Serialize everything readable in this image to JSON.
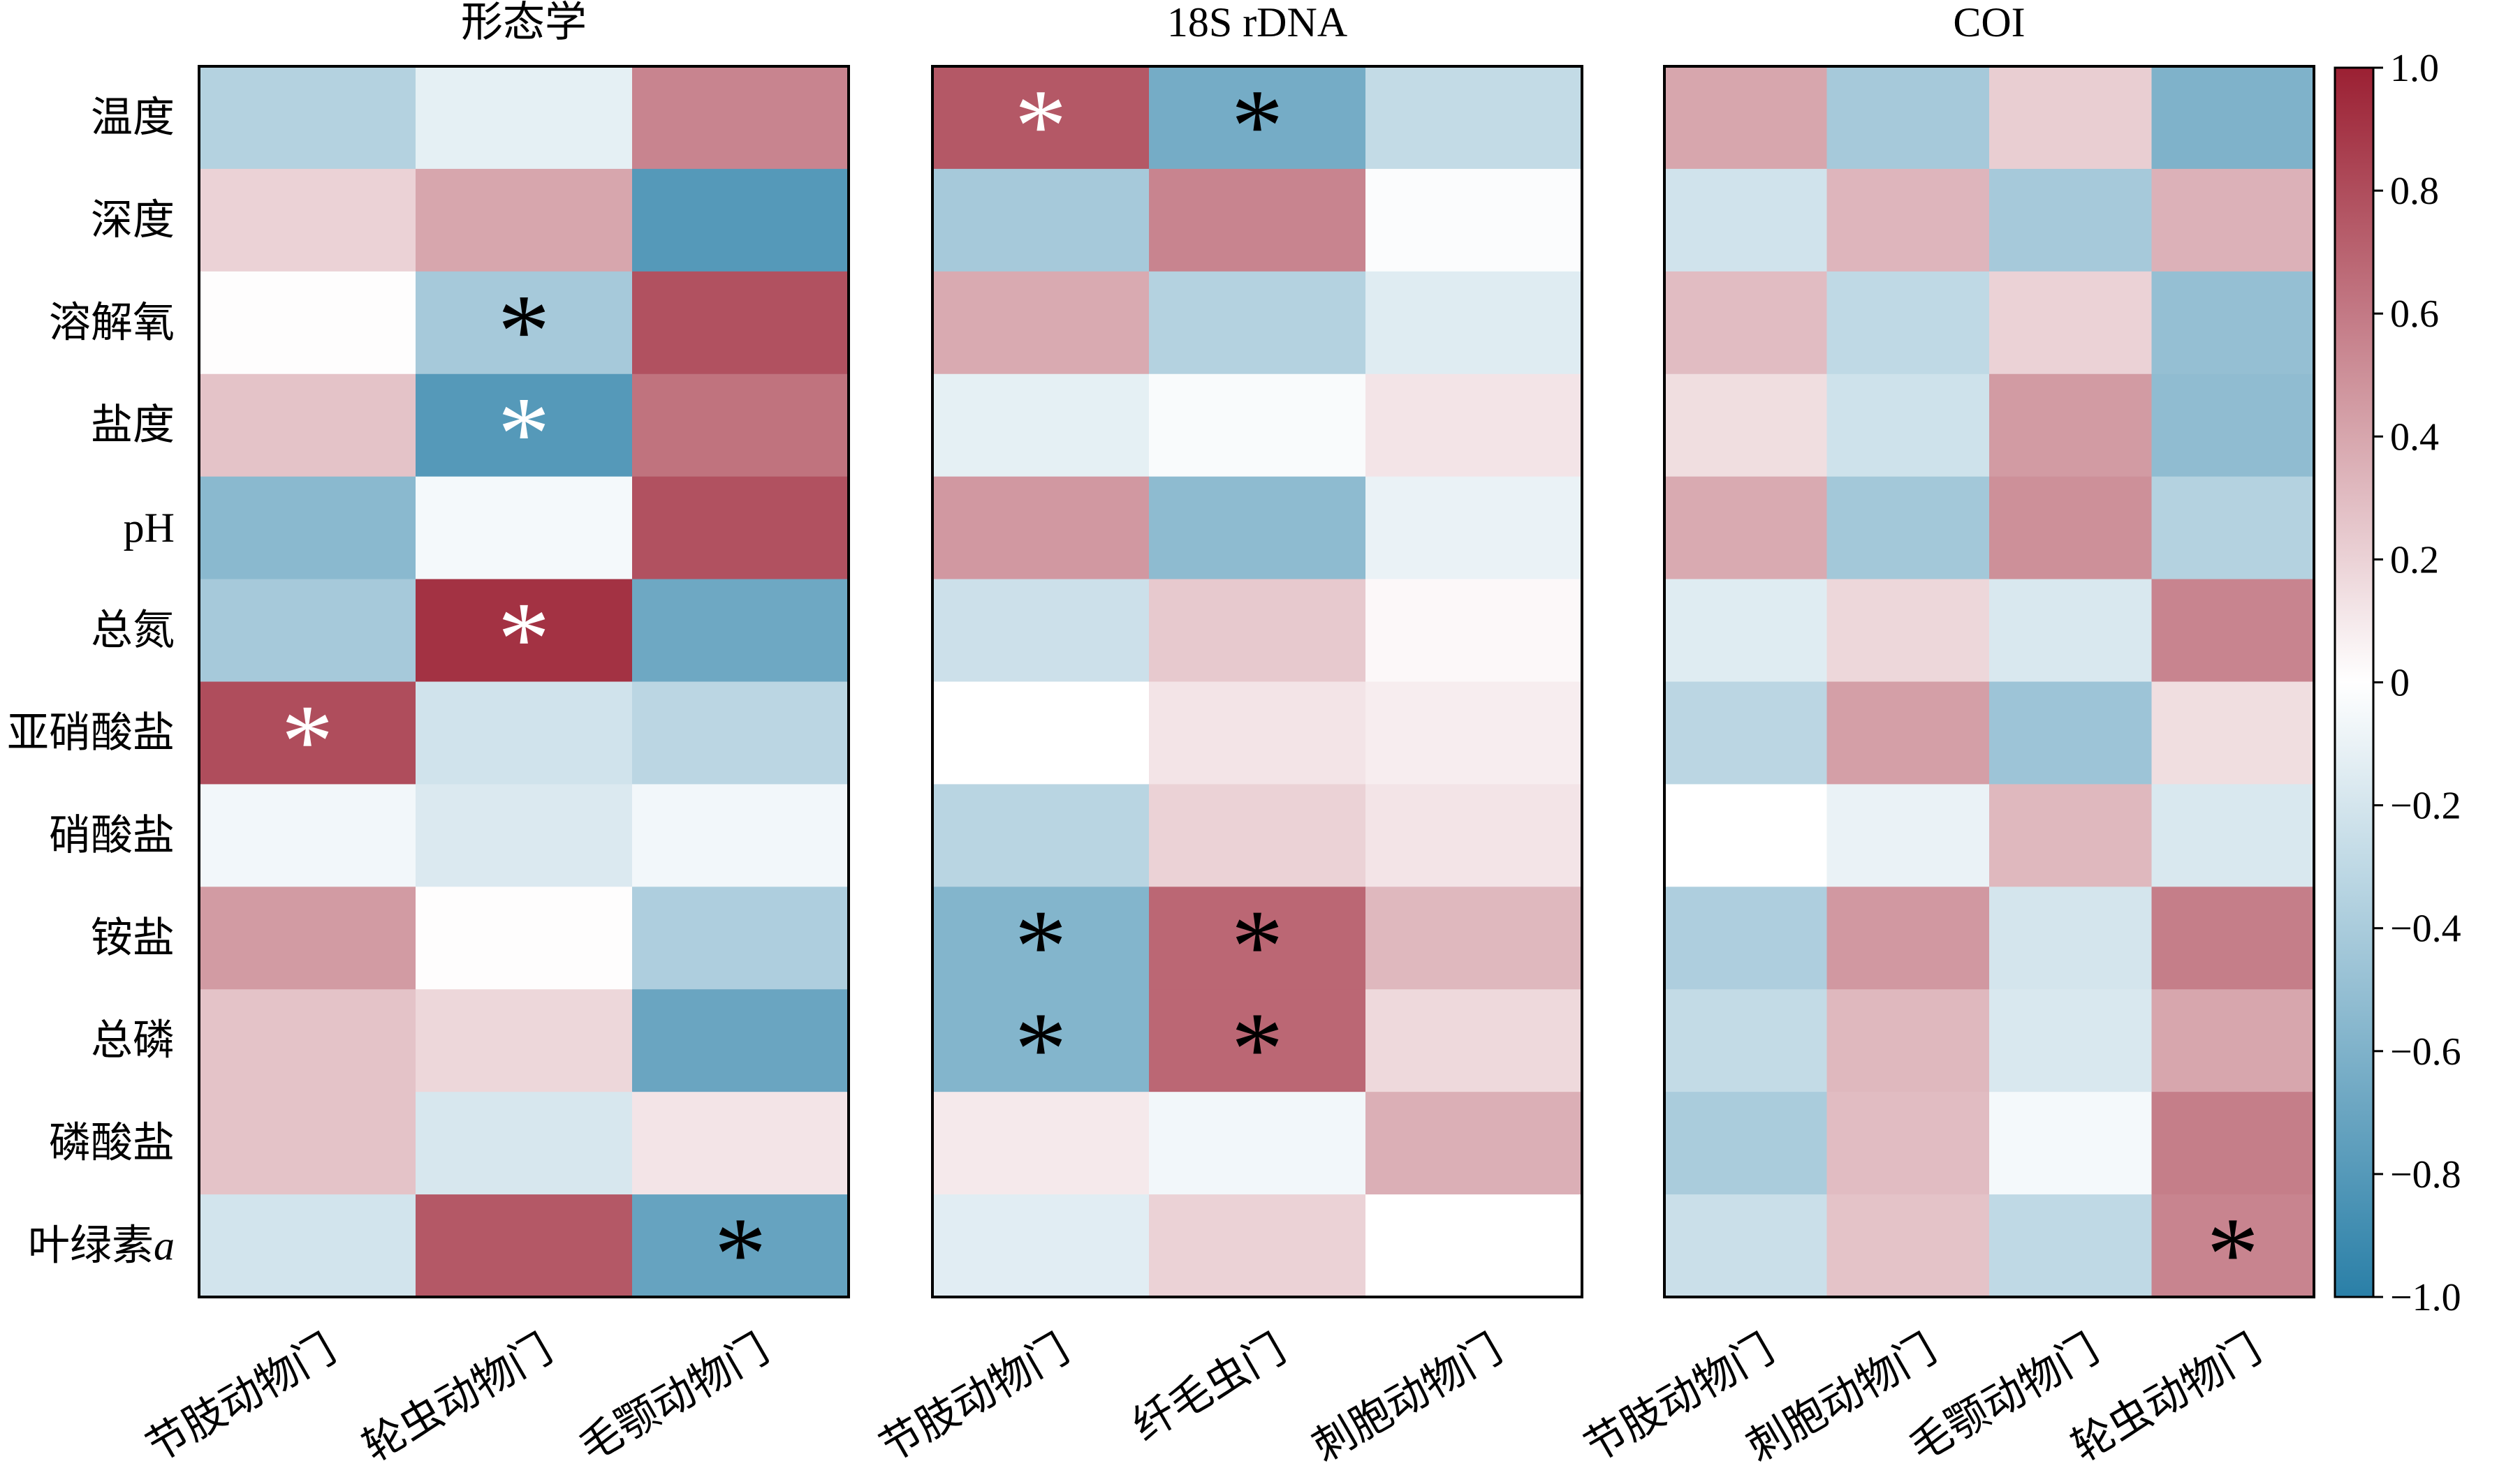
{
  "chart_data": {
    "type": "heatmap",
    "rows": [
      "温度",
      "深度",
      "溶解氧",
      "盐度",
      "pH",
      "总氮",
      "亚硝酸盐",
      "硝酸盐",
      "铵盐",
      "总磷",
      "磷酸盐",
      "叶绿素"
    ],
    "row_suffix": {
      "11": "a"
    },
    "color_range": [
      -1.0,
      1.0
    ],
    "colorbar_ticks": [
      "1.0",
      "0.8",
      "0.6",
      "0.4",
      "0.2",
      "0",
      "−0.2",
      "−0.4",
      "−0.6",
      "−0.8",
      "−1.0"
    ],
    "colors": {
      "negative": "#2a7fa7",
      "zero": "#ffffff",
      "positive": "#9b2033"
    },
    "significance_marker": "*",
    "panels": [
      {
        "title": "形态学",
        "columns": [
          "节肢动物门",
          "轮虫动物门",
          "毛颚动物门"
        ],
        "values": [
          [
            -0.35,
            -0.12,
            0.55
          ],
          [
            0.2,
            0.4,
            -0.8
          ],
          [
            0.01,
            -0.42,
            0.78
          ],
          [
            0.27,
            -0.8,
            0.63
          ],
          [
            -0.55,
            -0.05,
            0.78
          ],
          [
            -0.42,
            0.92,
            -0.68
          ],
          [
            0.8,
            -0.22,
            -0.32
          ],
          [
            -0.06,
            -0.17,
            -0.06
          ],
          [
            0.45,
            0.01,
            -0.38
          ],
          [
            0.27,
            0.18,
            -0.7
          ],
          [
            0.27,
            -0.19,
            0.12
          ],
          [
            -0.21,
            0.75,
            -0.72
          ]
        ],
        "significant": [
          [
            0,
            6
          ],
          [
            1,
            2,
            "black"
          ],
          [
            1,
            3,
            "white"
          ],
          [
            1,
            5,
            "white"
          ],
          [
            2,
            11,
            "black"
          ]
        ]
      },
      {
        "title": "18S rDNA",
        "columns": [
          "节肢动物门",
          "纤毛虫门",
          "刺胞动物门"
        ],
        "values": [
          [
            0.75,
            -0.65,
            -0.28
          ],
          [
            -0.42,
            0.55,
            -0.02
          ],
          [
            0.38,
            -0.35,
            -0.15
          ],
          [
            -0.12,
            -0.03,
            0.12
          ],
          [
            0.46,
            -0.53,
            -0.1
          ],
          [
            -0.24,
            0.24,
            0.03
          ],
          [
            0.0,
            0.12,
            0.08
          ],
          [
            -0.33,
            0.2,
            0.12
          ],
          [
            -0.58,
            0.68,
            0.32
          ],
          [
            -0.58,
            0.68,
            0.17
          ],
          [
            0.1,
            -0.06,
            0.36
          ],
          [
            -0.14,
            0.2,
            0.0
          ]
        ],
        "significant": [
          [
            0,
            0,
            "white"
          ],
          [
            1,
            0,
            "black"
          ],
          [
            0,
            8,
            "black"
          ],
          [
            1,
            8,
            "black"
          ],
          [
            0,
            9,
            "black"
          ],
          [
            1,
            9,
            "black"
          ]
        ]
      },
      {
        "title": "COI",
        "columns": [
          "节肢动物门",
          "刺胞动物门",
          "毛颚动物门",
          "轮虫动物门"
        ],
        "values": [
          [
            0.4,
            -0.42,
            0.22,
            -0.6
          ],
          [
            -0.22,
            0.33,
            -0.42,
            0.35
          ],
          [
            0.3,
            -0.3,
            0.2,
            -0.5
          ],
          [
            0.15,
            -0.23,
            0.45,
            -0.52
          ],
          [
            0.38,
            -0.43,
            0.5,
            -0.35
          ],
          [
            -0.15,
            0.18,
            -0.18,
            0.55
          ],
          [
            -0.32,
            0.43,
            -0.46,
            0.15
          ],
          [
            0.0,
            -0.1,
            0.32,
            -0.18
          ],
          [
            -0.38,
            0.46,
            -0.2,
            0.58
          ],
          [
            -0.28,
            0.32,
            -0.18,
            0.4
          ],
          [
            -0.4,
            0.3,
            -0.05,
            0.58
          ],
          [
            -0.25,
            0.27,
            -0.3,
            0.55
          ]
        ],
        "significant": [
          [
            3,
            11,
            "black"
          ]
        ]
      }
    ]
  }
}
